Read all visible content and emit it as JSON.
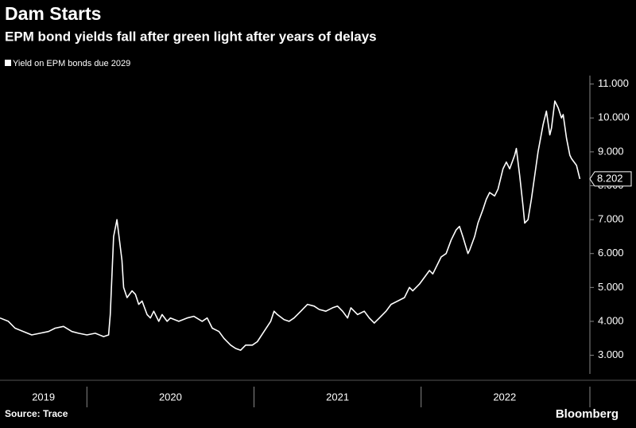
{
  "chart_data": {
    "type": "line",
    "title": "Dam Starts",
    "subtitle": "EPM bond yields fall after green light after years of delays",
    "source": "Source: Trace",
    "logo": "Bloomberg",
    "y_axis_side": "right",
    "grid": false,
    "x": [
      2019.48,
      2019.53,
      2019.57,
      2019.62,
      2019.67,
      2019.72,
      2019.77,
      2019.81,
      2019.86,
      2019.91,
      2019.95,
      2020.0,
      2020.05,
      2020.1,
      2020.13,
      2020.14,
      2020.16,
      2020.18,
      2020.19,
      2020.21,
      2020.22,
      2020.24,
      2020.27,
      2020.29,
      2020.31,
      2020.33,
      2020.36,
      2020.38,
      2020.4,
      2020.43,
      2020.45,
      2020.48,
      2020.5,
      2020.55,
      2020.6,
      2020.64,
      2020.69,
      2020.72,
      2020.75,
      2020.79,
      2020.82,
      2020.86,
      2020.89,
      2020.92,
      2020.95,
      2020.99,
      2021.02,
      2021.06,
      2021.1,
      2021.12,
      2021.14,
      2021.18,
      2021.21,
      2021.24,
      2021.28,
      2021.32,
      2021.36,
      2021.39,
      2021.43,
      2021.47,
      2021.5,
      2021.53,
      2021.56,
      2021.58,
      2021.62,
      2021.66,
      2021.69,
      2021.72,
      2021.75,
      2021.79,
      2021.82,
      2021.86,
      2021.9,
      2021.93,
      2021.95,
      2021.99,
      2022.02,
      2022.05,
      2022.07,
      2022.1,
      2022.12,
      2022.15,
      2022.18,
      2022.21,
      2022.23,
      2022.25,
      2022.28,
      2022.29,
      2022.32,
      2022.34,
      2022.37,
      2022.39,
      2022.41,
      2022.44,
      2022.46,
      2022.49,
      2022.51,
      2022.53,
      2022.56,
      2022.57,
      2022.59,
      2022.61,
      2022.62,
      2022.64,
      2022.66,
      2022.68,
      2022.7,
      2022.73,
      2022.75,
      2022.77,
      2022.78,
      2022.8,
      2022.82,
      2022.84,
      2022.85,
      2022.87,
      2022.89,
      2022.9,
      2022.93,
      2022.95
    ],
    "series": [
      {
        "name": "Yield on EPM bonds due 2029",
        "color": "#ffffff",
        "values": [
          4.1,
          4.0,
          3.8,
          3.7,
          3.6,
          3.65,
          3.7,
          3.8,
          3.85,
          3.7,
          3.65,
          3.6,
          3.65,
          3.55,
          3.6,
          4.2,
          6.5,
          7.0,
          6.6,
          5.8,
          5.0,
          4.7,
          4.9,
          4.8,
          4.5,
          4.6,
          4.2,
          4.1,
          4.3,
          4.0,
          4.2,
          4.0,
          4.1,
          4.0,
          4.1,
          4.15,
          4.0,
          4.1,
          3.8,
          3.7,
          3.5,
          3.3,
          3.2,
          3.15,
          3.3,
          3.3,
          3.4,
          3.7,
          4.0,
          4.3,
          4.2,
          4.05,
          4.0,
          4.1,
          4.3,
          4.5,
          4.45,
          4.35,
          4.3,
          4.4,
          4.45,
          4.3,
          4.1,
          4.4,
          4.2,
          4.3,
          4.1,
          3.95,
          4.1,
          4.3,
          4.5,
          4.6,
          4.7,
          5.0,
          4.9,
          5.1,
          5.3,
          5.5,
          5.4,
          5.7,
          5.9,
          6.0,
          6.4,
          6.7,
          6.8,
          6.5,
          6.0,
          6.1,
          6.5,
          6.9,
          7.3,
          7.6,
          7.8,
          7.7,
          7.9,
          8.5,
          8.7,
          8.5,
          8.9,
          9.1,
          8.3,
          7.4,
          6.9,
          7.0,
          7.6,
          8.3,
          9.0,
          9.8,
          10.2,
          9.5,
          9.7,
          10.5,
          10.3,
          10.0,
          10.1,
          9.4,
          8.9,
          8.8,
          8.6,
          8.202
        ]
      }
    ],
    "xlim": [
      2019.48,
      2023.01
    ],
    "xticks": [
      2019,
      2020,
      2021,
      2022
    ],
    "ylim": [
      2.45,
      11.25
    ],
    "yticks": [
      {
        "value": 3,
        "label": "3.000"
      },
      {
        "value": 4,
        "label": "4.000"
      },
      {
        "value": 5,
        "label": "5.000"
      },
      {
        "value": 6,
        "label": "6.000"
      },
      {
        "value": 7,
        "label": "7.000"
      },
      {
        "value": 8,
        "label": "8.000"
      },
      {
        "value": 9,
        "label": "9.000"
      },
      {
        "value": 10,
        "label": "10.000"
      },
      {
        "value": 11,
        "label": "11.000"
      }
    ]
  }
}
